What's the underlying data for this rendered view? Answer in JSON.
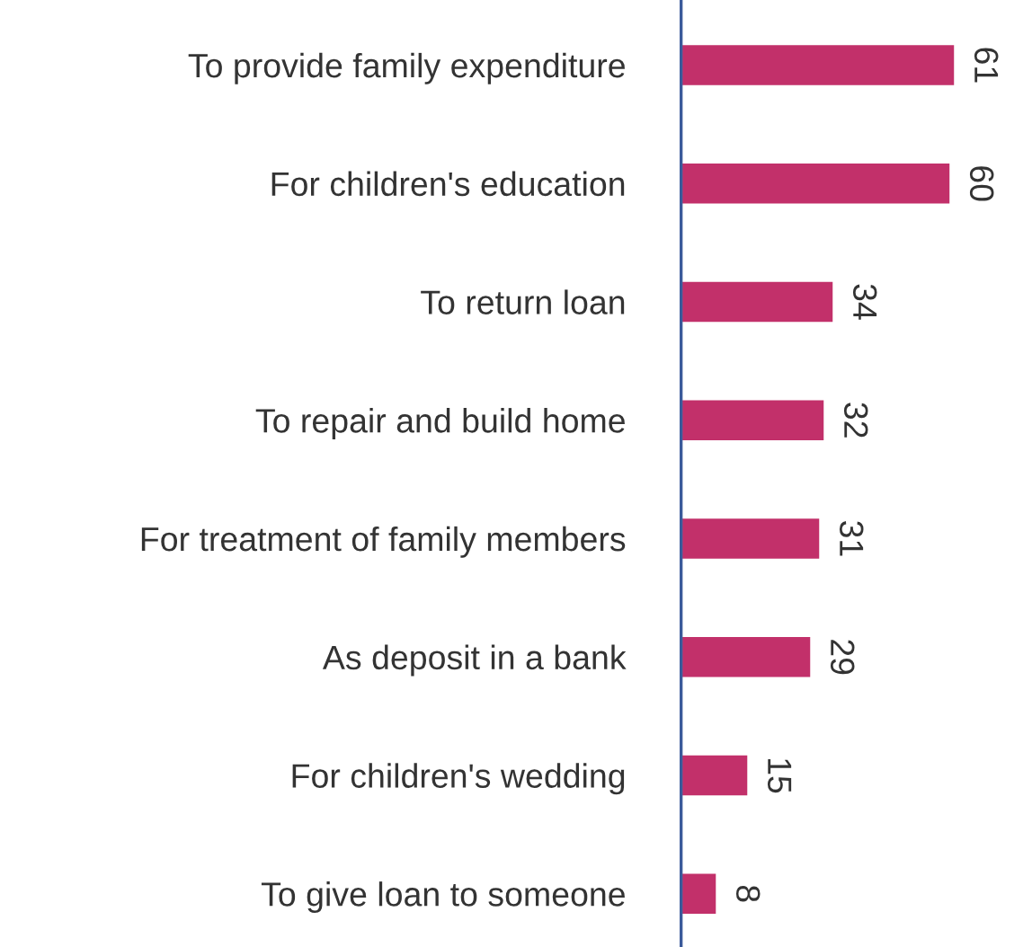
{
  "chart_data": {
    "type": "bar",
    "orientation": "horizontal",
    "categories": [
      "To provide family expenditure",
      "For children's education",
      "To return loan",
      "To repair and build home",
      "For treatment of family members",
      "As deposit in a bank",
      "For children's wedding",
      "To give loan to someone"
    ],
    "values": [
      61,
      60,
      34,
      32,
      31,
      29,
      15,
      8
    ],
    "color": "#c2306a",
    "data_labels": true,
    "grid": false,
    "legend": false
  }
}
